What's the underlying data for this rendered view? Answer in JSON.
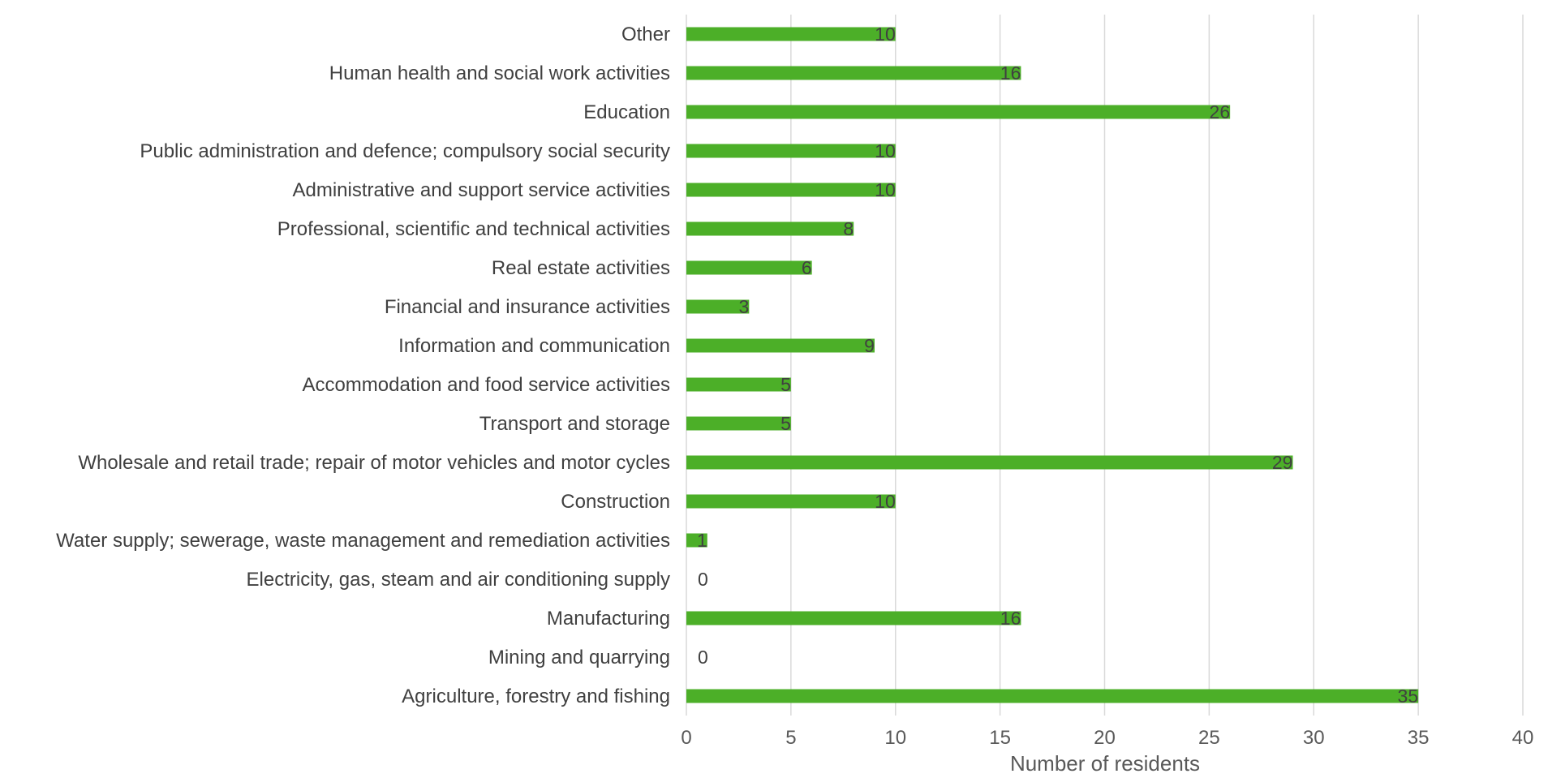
{
  "chart_data": {
    "type": "bar",
    "orientation": "horizontal",
    "categories": [
      "Other",
      "Human health and social work activities",
      "Education",
      "Public administration and defence; compulsory social security",
      "Administrative and support service activities",
      "Professional, scientific and technical activities",
      "Real estate activities",
      "Financial and insurance activities",
      "Information and communication",
      "Accommodation and food service activities",
      "Transport and storage",
      "Wholesale and retail trade; repair of motor vehicles and motor cycles",
      "Construction",
      "Water supply; sewerage, waste management and remediation activities",
      "Electricity, gas, steam and air conditioning supply",
      "Manufacturing",
      "Mining and quarrying",
      "Agriculture, forestry and fishing"
    ],
    "values": [
      10,
      16,
      26,
      10,
      10,
      8,
      6,
      3,
      9,
      5,
      5,
      29,
      10,
      1,
      0,
      16,
      0,
      35
    ],
    "xlabel": "Number of residents",
    "ylabel": "",
    "xlim": [
      0,
      40
    ],
    "xticks": [
      0,
      5,
      10,
      15,
      20,
      25,
      30,
      35,
      40
    ],
    "grid": "vertical",
    "legend": "none",
    "bar_color": "#4caf28"
  }
}
